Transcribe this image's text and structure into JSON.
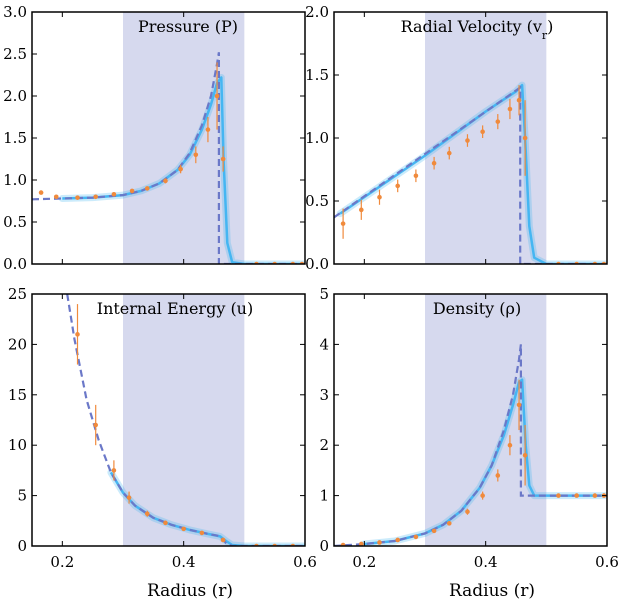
{
  "colors": {
    "band": "#d6d9ee",
    "simulation": "#45b6f2",
    "analytic": "#6b78c8",
    "samples": "#f08a3c",
    "axis": "#000000"
  },
  "labels": {
    "xlabel_left": "Radius (r)",
    "xlabel_right": "Radius (r)"
  },
  "chart_data": [
    {
      "type": "line",
      "title": "Pressure (P)",
      "xlim": [
        0.15,
        0.6
      ],
      "ylim": [
        0,
        3.0
      ],
      "yticks": [
        0.0,
        0.5,
        1.0,
        1.5,
        2.0,
        2.5,
        3.0
      ],
      "ytick_labels": [
        "0.0",
        "0.5",
        "1.0",
        "1.5",
        "2.0",
        "2.5",
        "3.0"
      ],
      "xticks": [
        0.2,
        0.4,
        0.6
      ],
      "xtick_labels": [],
      "shaded_region": [
        0.3,
        0.5
      ],
      "series": [
        {
          "style": "dashed",
          "x": [
            0.15,
            0.2,
            0.25,
            0.3,
            0.33,
            0.36,
            0.39,
            0.41,
            0.43,
            0.445,
            0.455,
            0.458,
            0.458,
            0.6
          ],
          "y": [
            0.77,
            0.78,
            0.79,
            0.82,
            0.87,
            0.96,
            1.12,
            1.32,
            1.65,
            2.0,
            2.38,
            2.52,
            0.0,
            0.0
          ]
        },
        {
          "style": "band",
          "x": [
            0.2,
            0.25,
            0.3,
            0.33,
            0.36,
            0.39,
            0.41,
            0.43,
            0.445,
            0.455,
            0.462,
            0.466,
            0.472,
            0.48,
            0.5,
            0.6
          ],
          "y": [
            0.78,
            0.79,
            0.82,
            0.87,
            0.96,
            1.12,
            1.3,
            1.6,
            1.9,
            2.15,
            2.22,
            1.2,
            0.25,
            0.02,
            0.0,
            0.0
          ]
        },
        {
          "style": "points",
          "x": [
            0.165,
            0.19,
            0.225,
            0.255,
            0.285,
            0.315,
            0.34,
            0.37,
            0.395,
            0.42,
            0.44,
            0.455,
            0.465,
            0.52,
            0.55,
            0.58,
            0.595
          ],
          "y": [
            0.85,
            0.8,
            0.79,
            0.8,
            0.83,
            0.87,
            0.9,
            0.99,
            1.13,
            1.3,
            1.6,
            2.0,
            1.25,
            0.0,
            0.0,
            0.0,
            0.0
          ],
          "err": [
            0.02,
            0.01,
            0.01,
            0.01,
            0.01,
            0.02,
            0.02,
            0.03,
            0.05,
            0.1,
            0.15,
            0.4,
            0.15,
            0,
            0,
            0,
            0
          ]
        }
      ]
    },
    {
      "type": "line",
      "title": "Radial Velocity (v_r)",
      "xlim": [
        0.15,
        0.6
      ],
      "ylim": [
        0,
        2.0
      ],
      "yticks": [
        0.0,
        0.5,
        1.0,
        1.5,
        2.0
      ],
      "ytick_labels": [
        "0.0",
        "0.5",
        "1.0",
        "1.5",
        "2.0"
      ],
      "xticks": [
        0.2,
        0.4,
        0.6
      ],
      "xtick_labels": [],
      "shaded_region": [
        0.3,
        0.5
      ],
      "series": [
        {
          "style": "dashed",
          "x": [
            0.15,
            0.457,
            0.457,
            0.6
          ],
          "y": [
            0.37,
            1.4,
            0.0,
            0.0
          ]
        },
        {
          "style": "band",
          "x": [
            0.16,
            0.3,
            0.4,
            0.45,
            0.46,
            0.465,
            0.472,
            0.48,
            0.5,
            0.6
          ],
          "y": [
            0.4,
            0.86,
            1.21,
            1.37,
            1.42,
            1.0,
            0.3,
            0.05,
            0.0,
            0.0
          ]
        },
        {
          "style": "points",
          "x": [
            0.165,
            0.195,
            0.225,
            0.255,
            0.285,
            0.315,
            0.34,
            0.37,
            0.395,
            0.42,
            0.44,
            0.455,
            0.465,
            0.52,
            0.55,
            0.58,
            0.595
          ],
          "y": [
            0.32,
            0.43,
            0.53,
            0.62,
            0.7,
            0.8,
            0.88,
            0.98,
            1.05,
            1.13,
            1.23,
            1.3,
            1.0,
            0.0,
            0.0,
            0.0,
            0.0
          ],
          "err": [
            0.12,
            0.08,
            0.06,
            0.05,
            0.05,
            0.05,
            0.05,
            0.05,
            0.05,
            0.06,
            0.08,
            0.12,
            0.3,
            0,
            0,
            0,
            0
          ]
        }
      ]
    },
    {
      "type": "line",
      "title": "Internal Energy (u)",
      "xlim": [
        0.15,
        0.6
      ],
      "ylim": [
        0,
        25
      ],
      "yticks": [
        0,
        5,
        10,
        15,
        20,
        25
      ],
      "ytick_labels": [
        "0",
        "5",
        "10",
        "15",
        "20",
        "25"
      ],
      "xticks": [
        0.2,
        0.4,
        0.6
      ],
      "xtick_labels": [
        "0.2",
        "0.4",
        "0.6"
      ],
      "shaded_region": [
        0.3,
        0.5
      ],
      "series": [
        {
          "style": "dashed",
          "x": [
            0.208,
            0.22,
            0.24,
            0.26,
            0.28,
            0.3,
            0.32,
            0.35,
            0.38,
            0.41,
            0.44,
            0.458,
            0.47,
            0.48,
            0.6
          ],
          "y": [
            25,
            20.5,
            14.5,
            10.5,
            7.3,
            5.3,
            4.0,
            2.8,
            2.1,
            1.6,
            1.2,
            1.0,
            0.3,
            0.0,
            0.0
          ]
        },
        {
          "style": "band",
          "x": [
            0.28,
            0.3,
            0.32,
            0.35,
            0.38,
            0.41,
            0.44,
            0.46,
            0.47,
            0.48,
            0.5,
            0.6
          ],
          "y": [
            7.3,
            5.3,
            4.0,
            2.8,
            2.1,
            1.6,
            1.2,
            0.95,
            0.5,
            0.1,
            0.0,
            0.0
          ]
        },
        {
          "style": "points",
          "x": [
            0.225,
            0.255,
            0.285,
            0.31,
            0.34,
            0.37,
            0.4,
            0.43,
            0.465,
            0.52,
            0.55,
            0.58
          ],
          "y": [
            21.0,
            12.0,
            7.5,
            4.8,
            3.2,
            2.3,
            1.7,
            1.3,
            0.6,
            0.0,
            0.0,
            0.0
          ],
          "err": [
            3.0,
            2.0,
            1.0,
            0.6,
            0.3,
            0.2,
            0.15,
            0.1,
            0.2,
            0,
            0,
            0
          ]
        }
      ]
    },
    {
      "type": "line",
      "title": "Density (ρ)",
      "xlim": [
        0.15,
        0.6
      ],
      "ylim": [
        0,
        5
      ],
      "yticks": [
        0,
        1,
        2,
        3,
        4,
        5
      ],
      "ytick_labels": [
        "0",
        "1",
        "2",
        "3",
        "4",
        "5"
      ],
      "xticks": [
        0.2,
        0.4,
        0.6
      ],
      "xtick_labels": [
        "0.2",
        "0.4",
        "0.6"
      ],
      "shaded_region": [
        0.3,
        0.5
      ],
      "series": [
        {
          "style": "dashed",
          "x": [
            0.15,
            0.2,
            0.25,
            0.3,
            0.33,
            0.36,
            0.39,
            0.41,
            0.43,
            0.445,
            0.455,
            0.458,
            0.458,
            0.6
          ],
          "y": [
            0.0,
            0.04,
            0.1,
            0.25,
            0.42,
            0.7,
            1.15,
            1.6,
            2.3,
            3.0,
            3.7,
            4.0,
            1.0,
            1.0
          ]
        },
        {
          "style": "band",
          "x": [
            0.2,
            0.25,
            0.3,
            0.33,
            0.36,
            0.39,
            0.41,
            0.43,
            0.445,
            0.455,
            0.46,
            0.466,
            0.472,
            0.48,
            0.5,
            0.6
          ],
          "y": [
            0.04,
            0.1,
            0.25,
            0.42,
            0.7,
            1.15,
            1.6,
            2.2,
            2.8,
            3.25,
            3.3,
            2.0,
            1.2,
            1.0,
            1.0,
            1.0
          ]
        },
        {
          "style": "points",
          "x": [
            0.165,
            0.195,
            0.225,
            0.255,
            0.285,
            0.315,
            0.34,
            0.37,
            0.395,
            0.42,
            0.44,
            0.455,
            0.465,
            0.52,
            0.55,
            0.58,
            0.595
          ],
          "y": [
            0.02,
            0.04,
            0.07,
            0.12,
            0.18,
            0.3,
            0.45,
            0.68,
            1.0,
            1.4,
            2.0,
            2.8,
            1.8,
            1.0,
            1.0,
            1.0,
            1.0
          ],
          "err": [
            0.01,
            0.01,
            0.01,
            0.02,
            0.02,
            0.03,
            0.04,
            0.06,
            0.08,
            0.12,
            0.2,
            0.5,
            0.6,
            0,
            0,
            0,
            0
          ]
        }
      ]
    }
  ]
}
